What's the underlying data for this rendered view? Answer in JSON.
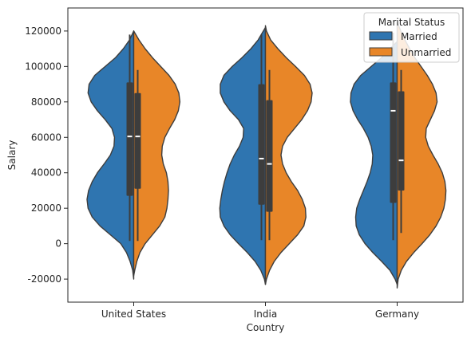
{
  "chart_data": {
    "type": "violin",
    "split": true,
    "xlabel": "Country",
    "ylabel": "Salary",
    "ylim": [
      -33000,
      133000
    ],
    "yticks": [
      -20000,
      0,
      20000,
      40000,
      60000,
      80000,
      100000,
      120000
    ],
    "categories": [
      "United States",
      "India",
      "Germany"
    ],
    "legend": {
      "title": "Marital Status",
      "position": "top-right"
    },
    "series": [
      {
        "name": "Married",
        "color": "#2f75b0",
        "violins": [
          {
            "category": "United States",
            "profile": [
              [
                -20000,
                0
              ],
              [
                -15000,
                0.02
              ],
              [
                -10000,
                0.07
              ],
              [
                -5000,
                0.14
              ],
              [
                0,
                0.25
              ],
              [
                5000,
                0.45
              ],
              [
                10000,
                0.65
              ],
              [
                15000,
                0.8
              ],
              [
                20000,
                0.88
              ],
              [
                25000,
                0.9
              ],
              [
                30000,
                0.87
              ],
              [
                35000,
                0.8
              ],
              [
                40000,
                0.7
              ],
              [
                45000,
                0.57
              ],
              [
                50000,
                0.45
              ],
              [
                55000,
                0.38
              ],
              [
                60000,
                0.37
              ],
              [
                65000,
                0.42
              ],
              [
                70000,
                0.55
              ],
              [
                75000,
                0.7
              ],
              [
                80000,
                0.82
              ],
              [
                85000,
                0.88
              ],
              [
                90000,
                0.86
              ],
              [
                95000,
                0.75
              ],
              [
                100000,
                0.55
              ],
              [
                105000,
                0.35
              ],
              [
                110000,
                0.2
              ],
              [
                115000,
                0.08
              ],
              [
                120000,
                0
              ]
            ],
            "whisker": [
              1500,
              118000
            ],
            "box": [
              27000,
              91000
            ],
            "median": 60500
          },
          {
            "category": "India",
            "profile": [
              [
                -23000,
                0
              ],
              [
                -20000,
                0.02
              ],
              [
                -15000,
                0.09
              ],
              [
                -10000,
                0.2
              ],
              [
                -5000,
                0.35
              ],
              [
                0,
                0.52
              ],
              [
                5000,
                0.68
              ],
              [
                10000,
                0.8
              ],
              [
                15000,
                0.87
              ],
              [
                20000,
                0.88
              ],
              [
                25000,
                0.86
              ],
              [
                30000,
                0.83
              ],
              [
                35000,
                0.79
              ],
              [
                40000,
                0.74
              ],
              [
                45000,
                0.68
              ],
              [
                50000,
                0.6
              ],
              [
                55000,
                0.5
              ],
              [
                60000,
                0.43
              ],
              [
                65000,
                0.42
              ],
              [
                70000,
                0.52
              ],
              [
                75000,
                0.68
              ],
              [
                80000,
                0.8
              ],
              [
                85000,
                0.87
              ],
              [
                90000,
                0.87
              ],
              [
                95000,
                0.8
              ],
              [
                100000,
                0.64
              ],
              [
                105000,
                0.45
              ],
              [
                110000,
                0.28
              ],
              [
                115000,
                0.14
              ],
              [
                120000,
                0.04
              ],
              [
                122000,
                0
              ]
            ],
            "whisker": [
              2000,
              118000
            ],
            "box": [
              22000,
              90000
            ],
            "median": 48000
          },
          {
            "category": "Germany",
            "profile": [
              [
                -23000,
                0
              ],
              [
                -20000,
                0.04
              ],
              [
                -15000,
                0.14
              ],
              [
                -10000,
                0.3
              ],
              [
                -5000,
                0.47
              ],
              [
                0,
                0.62
              ],
              [
                5000,
                0.73
              ],
              [
                10000,
                0.79
              ],
              [
                15000,
                0.8
              ],
              [
                20000,
                0.78
              ],
              [
                25000,
                0.72
              ],
              [
                30000,
                0.65
              ],
              [
                35000,
                0.58
              ],
              [
                40000,
                0.52
              ],
              [
                45000,
                0.48
              ],
              [
                50000,
                0.47
              ],
              [
                55000,
                0.5
              ],
              [
                60000,
                0.56
              ],
              [
                65000,
                0.65
              ],
              [
                70000,
                0.76
              ],
              [
                75000,
                0.85
              ],
              [
                80000,
                0.9
              ],
              [
                85000,
                0.89
              ],
              [
                90000,
                0.83
              ],
              [
                95000,
                0.7
              ],
              [
                100000,
                0.5
              ],
              [
                105000,
                0.3
              ],
              [
                110000,
                0.14
              ],
              [
                114000,
                0
              ]
            ],
            "whisker": [
              2000,
              119000
            ],
            "box": [
              23000,
              91000
            ],
            "median": 75000
          }
        ]
      },
      {
        "name": "Unmarried",
        "color": "#e88628",
        "violins": [
          {
            "category": "United States",
            "profile": [
              [
                -18000,
                0
              ],
              [
                -15000,
                0.02
              ],
              [
                -10000,
                0.06
              ],
              [
                -5000,
                0.12
              ],
              [
                0,
                0.22
              ],
              [
                5000,
                0.36
              ],
              [
                10000,
                0.5
              ],
              [
                15000,
                0.6
              ],
              [
                20000,
                0.64
              ],
              [
                25000,
                0.66
              ],
              [
                30000,
                0.67
              ],
              [
                35000,
                0.66
              ],
              [
                40000,
                0.63
              ],
              [
                45000,
                0.57
              ],
              [
                50000,
                0.54
              ],
              [
                55000,
                0.55
              ],
              [
                60000,
                0.6
              ],
              [
                65000,
                0.69
              ],
              [
                70000,
                0.79
              ],
              [
                75000,
                0.86
              ],
              [
                80000,
                0.89
              ],
              [
                85000,
                0.87
              ],
              [
                90000,
                0.8
              ],
              [
                95000,
                0.68
              ],
              [
                100000,
                0.52
              ],
              [
                105000,
                0.36
              ],
              [
                110000,
                0.22
              ],
              [
                115000,
                0.1
              ],
              [
                120000,
                0
              ]
            ],
            "whisker": [
              1500,
              98000
            ],
            "box": [
              31000,
              85000
            ],
            "median": 60500
          },
          {
            "category": "India",
            "profile": [
              [
                -23000,
                0
              ],
              [
                -20000,
                0.02
              ],
              [
                -15000,
                0.08
              ],
              [
                -10000,
                0.17
              ],
              [
                -5000,
                0.3
              ],
              [
                0,
                0.46
              ],
              [
                5000,
                0.62
              ],
              [
                10000,
                0.74
              ],
              [
                15000,
                0.78
              ],
              [
                20000,
                0.77
              ],
              [
                25000,
                0.71
              ],
              [
                30000,
                0.62
              ],
              [
                35000,
                0.5
              ],
              [
                40000,
                0.4
              ],
              [
                45000,
                0.33
              ],
              [
                50000,
                0.3
              ],
              [
                55000,
                0.33
              ],
              [
                60000,
                0.42
              ],
              [
                65000,
                0.56
              ],
              [
                70000,
                0.7
              ],
              [
                75000,
                0.81
              ],
              [
                80000,
                0.88
              ],
              [
                85000,
                0.9
              ],
              [
                90000,
                0.86
              ],
              [
                95000,
                0.75
              ],
              [
                100000,
                0.58
              ],
              [
                105000,
                0.4
              ],
              [
                110000,
                0.24
              ],
              [
                115000,
                0.1
              ],
              [
                120000,
                0.02
              ],
              [
                123000,
                0
              ]
            ],
            "whisker": [
              2000,
              98000
            ],
            "box": [
              18000,
              81000
            ],
            "median": 45000
          },
          {
            "category": "Germany",
            "profile": [
              [
                -25000,
                0
              ],
              [
                -20000,
                0.02
              ],
              [
                -15000,
                0.08
              ],
              [
                -10000,
                0.18
              ],
              [
                -5000,
                0.32
              ],
              [
                0,
                0.48
              ],
              [
                5000,
                0.63
              ],
              [
                10000,
                0.75
              ],
              [
                15000,
                0.84
              ],
              [
                20000,
                0.9
              ],
              [
                25000,
                0.93
              ],
              [
                30000,
                0.94
              ],
              [
                35000,
                0.92
              ],
              [
                40000,
                0.87
              ],
              [
                45000,
                0.79
              ],
              [
                50000,
                0.69
              ],
              [
                55000,
                0.6
              ],
              [
                60000,
                0.55
              ],
              [
                65000,
                0.56
              ],
              [
                70000,
                0.64
              ],
              [
                75000,
                0.72
              ],
              [
                80000,
                0.77
              ],
              [
                85000,
                0.75
              ],
              [
                90000,
                0.68
              ],
              [
                95000,
                0.58
              ],
              [
                100000,
                0.46
              ],
              [
                105000,
                0.34
              ],
              [
                110000,
                0.24
              ],
              [
                115000,
                0.15
              ],
              [
                120000,
                0.07
              ],
              [
                125000,
                0
              ]
            ],
            "whisker": [
              6000,
              98000
            ],
            "box": [
              30000,
              86000
            ],
            "median": 47000
          }
        ]
      }
    ]
  }
}
